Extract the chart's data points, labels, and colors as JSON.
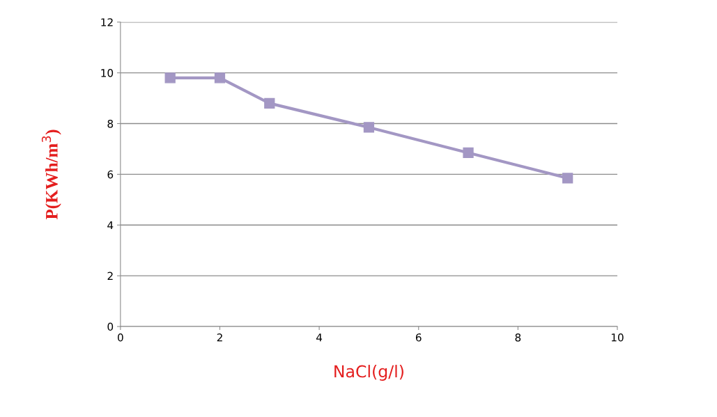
{
  "chart_data": {
    "type": "line",
    "xlabel": "NaCl(g/l)",
    "ylabel": "P(KWh/m$^{3}$)",
    "x": [
      1,
      2,
      3,
      5,
      7,
      9
    ],
    "series": [
      {
        "color": "#a397c4",
        "values": [
          9.8,
          9.8,
          8.8,
          7.85,
          6.85,
          5.85
        ]
      }
    ],
    "xlim": [
      0,
      10
    ],
    "xticks": [
      0,
      2,
      4,
      6,
      8,
      10
    ],
    "ylim": [
      0,
      12
    ],
    "yticks": [
      0,
      2,
      4,
      6,
      8,
      10,
      12
    ],
    "grid": "y",
    "marker": "square",
    "line_style": "solid",
    "legend": false
  }
}
